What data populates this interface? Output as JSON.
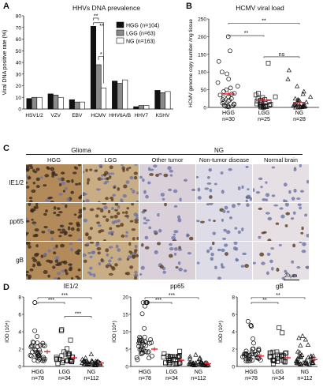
{
  "panels": {
    "A": {
      "label": "A",
      "chart_data": {
        "type": "bar",
        "title": "HHVs DNA prevalence",
        "ylabel": "Viral DNA positive rate (%)",
        "ylim": [
          0,
          80
        ],
        "yticks": [
          "0",
          "10",
          "20",
          "30",
          "40",
          "50",
          "60",
          "70",
          "80"
        ],
        "categories": [
          "HSV1/2",
          "VZV",
          "EBV",
          "HCMV",
          "HHV6A/B",
          "HHV7",
          "KSHV"
        ],
        "series": [
          {
            "name": "HGG (n=104)",
            "color": "#111111",
            "values": [
              9,
              13,
              8,
              71,
              24,
              2,
              16
            ]
          },
          {
            "name": "LGG (n=63)",
            "color": "#8a8a8a",
            "values": [
              10,
              12,
              6,
              38,
              22,
              3,
              14
            ]
          },
          {
            "name": "NG (n=163)",
            "color": "#ffffff",
            "values": [
              10,
              10,
              6,
              18,
              25,
              3,
              15
            ]
          }
        ],
        "significance": [
          "**",
          "**",
          "*"
        ],
        "legend": "top-right"
      }
    },
    "B": {
      "label": "B",
      "chart_data": {
        "type": "scatter",
        "title": "HCMV viral load",
        "ylabel": "HCMV genome copy number /mg tissue",
        "ylim": [
          0,
          250
        ],
        "yticks": [
          "0",
          "50",
          "100",
          "150",
          "200",
          "250"
        ],
        "categories": [
          "HGG",
          "LGG",
          "NG"
        ],
        "n_labels": [
          "n=30",
          "n=25",
          "n=28"
        ],
        "marker": [
          "circle",
          "square",
          "triangle"
        ],
        "means": [
          38,
          20,
          14
        ],
        "points": [
          [
            200,
            160,
            130,
            100,
            95,
            80,
            70,
            60,
            55,
            50,
            45,
            40,
            38,
            35,
            30,
            28,
            25,
            22,
            20,
            18,
            15,
            12,
            10,
            8,
            6,
            5,
            4,
            3,
            2,
            1
          ],
          [
            125,
            40,
            35,
            30,
            28,
            25,
            22,
            20,
            18,
            16,
            14,
            12,
            10,
            9,
            8,
            7,
            6,
            5,
            4,
            3,
            2,
            2,
            1,
            1,
            0
          ],
          [
            105,
            80,
            60,
            45,
            38,
            30,
            25,
            22,
            20,
            18,
            15,
            12,
            10,
            9,
            8,
            7,
            6,
            5,
            4,
            3,
            3,
            2,
            2,
            1,
            1,
            0,
            0,
            0
          ]
        ],
        "significance": [
          "**",
          "**",
          "ns"
        ]
      }
    },
    "C": {
      "label": "C",
      "group_glioma": "Glioma",
      "group_ng": "NG",
      "columns": [
        "HGG",
        "LGG",
        "Other tumor",
        "Non-tumor disease",
        "Normal brain"
      ],
      "rows": [
        "IE1/2",
        "pp65",
        "gB"
      ],
      "scalebar": "20μm"
    },
    "D": {
      "label": "D",
      "charts": [
        {
          "type": "scatter",
          "title": "IE1/2",
          "ylabel": "IOD (10⁴)",
          "ylim": [
            0,
            8
          ],
          "yticks": [
            "0",
            "2",
            "4",
            "6",
            "8"
          ],
          "categories": [
            "HGG",
            "LGG",
            "NG"
          ],
          "n_labels": [
            "n=78",
            "n=34",
            "n=112"
          ],
          "means": [
            1.7,
            1.0,
            0.4
          ],
          "significance": [
            "***",
            "***",
            "***"
          ]
        },
        {
          "type": "scatter",
          "title": "pp65",
          "ylabel": "IOD (10⁴)",
          "ylim": [
            0,
            20
          ],
          "yticks": [
            "0",
            "5",
            "10",
            "15",
            "20"
          ],
          "categories": [
            "HGG",
            "LGG",
            "NG"
          ],
          "n_labels": [
            "n=78",
            "n=34",
            "n=112"
          ],
          "means": [
            5.0,
            1.8,
            0.8
          ],
          "significance": [
            "***",
            "***"
          ]
        },
        {
          "type": "scatter",
          "title": "gB",
          "ylabel": "IOD (10⁴)",
          "ylim": [
            0,
            8
          ],
          "yticks": [
            "0",
            "2",
            "4",
            "6",
            "8"
          ],
          "categories": [
            "HGG",
            "LGG",
            "NG"
          ],
          "n_labels": [
            "n=78",
            "n=34",
            "n=112"
          ],
          "means": [
            1.2,
            1.0,
            0.8
          ],
          "significance": [
            "**",
            "**"
          ]
        }
      ]
    }
  }
}
